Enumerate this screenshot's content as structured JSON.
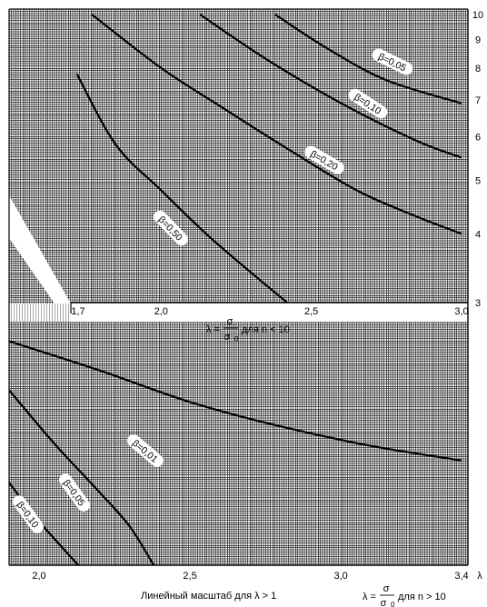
{
  "chart_data": [
    {
      "type": "line",
      "title": "",
      "xlabel": "λ = σ/σ0 для n < 10",
      "xlabel_parts": {
        "lhs": "λ =",
        "num": "σ",
        "den": "σ",
        "sub": "0",
        "rest": "для n < 10"
      },
      "x_ticks": [
        "1,7",
        "2,0",
        "2,5",
        "3,0"
      ],
      "x_range": [
        1.7,
        3.0
      ],
      "y_ticks": [
        "3",
        "4",
        "5",
        "6",
        "7",
        "8",
        "9",
        "10"
      ],
      "y_range": [
        3,
        10
      ],
      "y_scale": "log",
      "grid": true,
      "series": [
        {
          "name": "β=0,05",
          "points": [
            [
              2.38,
              10
            ],
            [
              2.55,
              8.7
            ],
            [
              2.75,
              7.6
            ],
            [
              3.0,
              6.9
            ]
          ]
        },
        {
          "name": "β=0,10",
          "points": [
            [
              2.13,
              10
            ],
            [
              2.35,
              8.3
            ],
            [
              2.6,
              6.9
            ],
            [
              2.85,
              5.9
            ],
            [
              3.0,
              5.5
            ]
          ]
        },
        {
          "name": "β=0,20",
          "points": [
            [
              1.77,
              10
            ],
            [
              2.0,
              8.0
            ],
            [
              2.2,
              6.8
            ],
            [
              2.4,
              5.8
            ],
            [
              2.65,
              4.8
            ],
            [
              2.85,
              4.3
            ],
            [
              3.0,
              4.0
            ]
          ]
        },
        {
          "name": "β=0,50",
          "points": [
            [
              1.72,
              7.8
            ],
            [
              1.85,
              5.8
            ],
            [
              2.0,
              4.8
            ],
            [
              2.15,
              4.0
            ],
            [
              2.3,
              3.4
            ],
            [
              2.42,
              3.0
            ]
          ]
        }
      ]
    },
    {
      "type": "line",
      "title": "",
      "xlabel": "Линейный масштаб для λ > 1",
      "xlabel_right": "λ = σ/σ0 для n > 10",
      "xlabel_right_parts": {
        "lhs": "λ =",
        "num": "σ",
        "den": "σ",
        "sub": "0",
        "rest": "для n > 10"
      },
      "x_ticks": [
        "2,0",
        "2,5",
        "3,0",
        "3,4"
      ],
      "x_axis_symbol": "λ",
      "x_range": [
        1.9,
        3.4
      ],
      "y_ticks": [],
      "grid": true,
      "series": [
        {
          "name": "β=0,01",
          "points": [
            [
              1.9,
              0.92
            ],
            [
              2.2,
              0.8
            ],
            [
              2.5,
              0.67
            ],
            [
              2.8,
              0.57
            ],
            [
              3.1,
              0.49
            ],
            [
              3.4,
              0.43
            ]
          ]
        },
        {
          "name": "β=0,05",
          "points": [
            [
              1.9,
              0.72
            ],
            [
              2.05,
              0.5
            ],
            [
              2.2,
              0.3
            ],
            [
              2.3,
              0.16
            ],
            [
              2.38,
              0.0
            ]
          ]
        },
        {
          "name": "β=0,10",
          "points": [
            [
              1.9,
              0.34
            ],
            [
              2.0,
              0.18
            ],
            [
              2.13,
              0.0
            ]
          ]
        }
      ]
    }
  ]
}
